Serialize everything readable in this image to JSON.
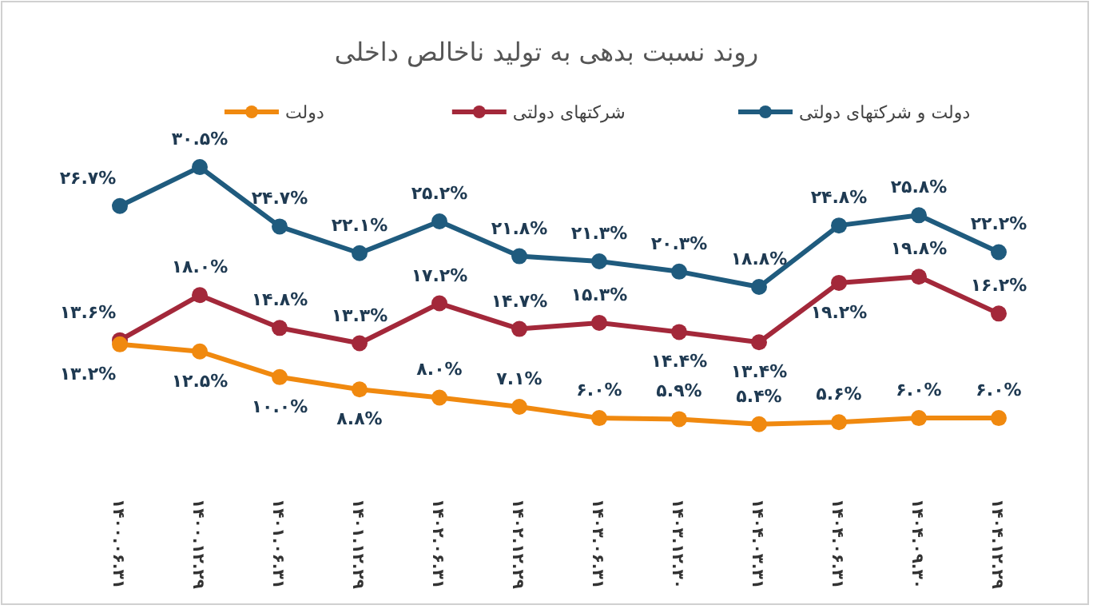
{
  "chart_data": {
    "type": "line",
    "title": "روند نسبت بدهی به تولید ناخالص داخلی",
    "legend": "top",
    "marker": "circle",
    "line_style": "solid",
    "tick_labels": "x",
    "categories": [
      "۱۴۰۰.۰۶.۳۱",
      "۱۴۰۰.۱۲.۲۹",
      "۱۴۰۱.۰۶.۳۱",
      "۱۴۰۱.۱۲.۲۹",
      "۱۴۰۲.۰۶.۳۱",
      "۱۴۰۲.۱۲.۲۹",
      "۱۴۰۳.۰۶.۳۱",
      "۱۴۰۳.۱۲.۳۰",
      "۱۴۰۴.۰۳.۳۱",
      "۱۴۰۴.۰۶.۳۱",
      "۱۴۰۴.۰۹.۳۰",
      "۱۴۰۴.۱۲.۲۹"
    ],
    "series": [
      {
        "name": "دولت و شرکتهای دولتی",
        "color": "#1f5b7e",
        "values": [
          26.7,
          30.5,
          24.7,
          22.1,
          25.2,
          21.8,
          21.3,
          20.3,
          18.8,
          24.8,
          25.8,
          22.2
        ],
        "value_labels": [
          "۲۶.۷%",
          "۳۰.۵%",
          "۲۴.۷%",
          "۲۲.۱%",
          "۲۵.۲%",
          "۲۱.۸%",
          "۲۱.۳%",
          "۲۰.۳%",
          "۱۸.۸%",
          "۲۴.۸%",
          "۲۵.۸%",
          "۲۲.۲%"
        ]
      },
      {
        "name": "شرکتهای دولتی",
        "color": "#a3283a",
        "values": [
          13.6,
          18.0,
          14.8,
          13.3,
          17.2,
          14.7,
          15.3,
          14.4,
          13.4,
          19.2,
          19.8,
          16.2
        ],
        "value_labels": [
          "۱۳.۶%",
          "۱۸.۰%",
          "۱۴.۸%",
          "۱۳.۳%",
          "۱۷.۲%",
          "۱۴.۷%",
          "۱۵.۳%",
          "۱۴.۴%",
          "۱۳.۴%",
          "۱۹.۲%",
          "۱۹.۸%",
          "۱۶.۲%"
        ]
      },
      {
        "name": "دولت",
        "color": "#f0890f",
        "values": [
          13.2,
          12.5,
          10.0,
          8.8,
          8.0,
          7.1,
          6.0,
          5.9,
          5.4,
          5.6,
          6.0,
          6.0
        ],
        "value_labels": [
          "۱۳.۲%",
          "۱۲.۵%",
          "۱۰.۰%",
          "۸.۸%",
          "۸.۰%",
          "۷.۱%",
          "۶.۰%",
          "۵.۹%",
          "۵.۴%",
          "۵.۶%",
          "۶.۰%",
          "۶.۰%"
        ]
      }
    ]
  }
}
